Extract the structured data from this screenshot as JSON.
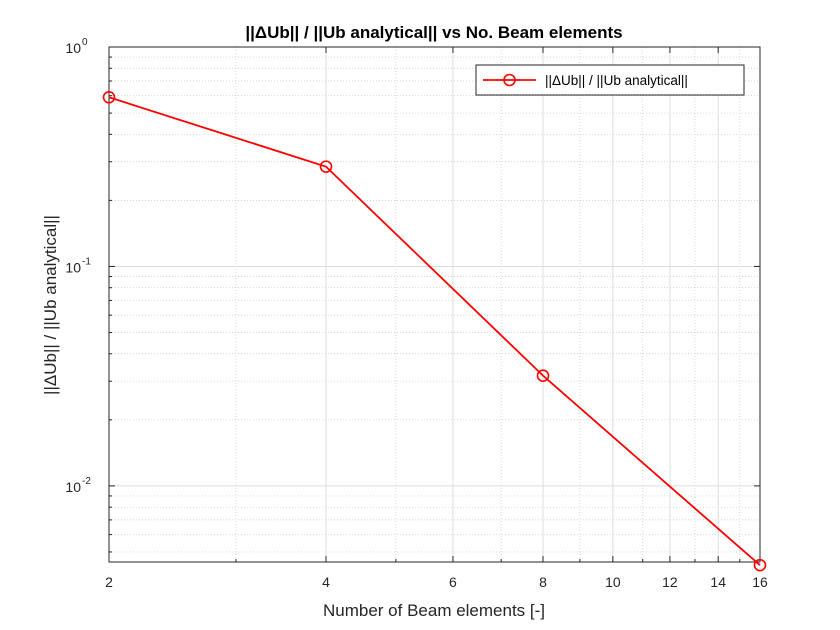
{
  "chart_data": {
    "type": "line",
    "title": "||ΔUb|| / ||Ub analytical|| vs No. Beam elements",
    "xlabel": "Number of Beam elements [-]",
    "ylabel": "||ΔUb|| / ||Ub analytical||",
    "xscale": "log",
    "yscale": "log",
    "xlim": [
      2,
      16
    ],
    "ylim": [
      0.0045,
      1
    ],
    "x_ticks": [
      2,
      4,
      6,
      8,
      10,
      12,
      14,
      16
    ],
    "x_tick_labels": [
      "2",
      "4",
      "6",
      "8",
      "10",
      "12",
      "14",
      "16"
    ],
    "y_ticks": [
      {
        "value": 1,
        "base": "10",
        "exponent": "0"
      },
      {
        "value": 0.1,
        "base": "10",
        "exponent": "-1"
      },
      {
        "value": 0.01,
        "base": "10",
        "exponent": "-2"
      }
    ],
    "grid": true,
    "minor_grid": true,
    "legend_position": "top-right",
    "series": [
      {
        "name": "||ΔUb|| / ||Ub analytical||",
        "color": "#ff0000",
        "marker": "circle",
        "x": [
          2,
          4,
          8,
          16
        ],
        "y": [
          0.59,
          0.285,
          0.0318,
          0.00435
        ]
      }
    ]
  }
}
